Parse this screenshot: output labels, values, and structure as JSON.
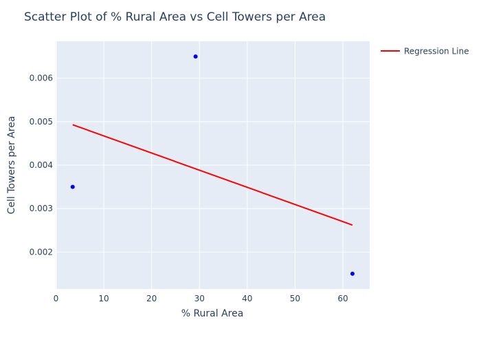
{
  "chart_data": {
    "type": "scatter",
    "title": "Scatter Plot of % Rural Area vs Cell Towers per Area",
    "xlabel": "% Rural Area",
    "ylabel": "Cell Towers per Area",
    "xlim": [
      -0.2,
      65.6
    ],
    "ylim": [
      0.00115,
      0.00685
    ],
    "x_ticks": [
      0,
      10,
      20,
      30,
      40,
      50,
      60
    ],
    "x_tick_labels": [
      "0",
      "10",
      "20",
      "30",
      "40",
      "50",
      "60"
    ],
    "y_ticks": [
      0.002,
      0.003,
      0.004,
      0.005,
      0.006
    ],
    "y_tick_labels": [
      "0.002",
      "0.003",
      "0.004",
      "0.005",
      "0.006"
    ],
    "grid": true,
    "legend_position": "top-right",
    "series": [
      {
        "type": "scatter",
        "color": "#0000ff",
        "x": [
          3.5,
          29.2,
          62.0
        ],
        "y": [
          0.0035,
          0.0065,
          0.0015
        ]
      },
      {
        "type": "line",
        "name": "Regression Line",
        "color": "#ff0000",
        "x": [
          3.5,
          62.0
        ],
        "y": [
          0.00493,
          0.00262
        ]
      }
    ],
    "plot_bgcolor": "#e5ecf6",
    "grid_color": "#ffffff"
  }
}
